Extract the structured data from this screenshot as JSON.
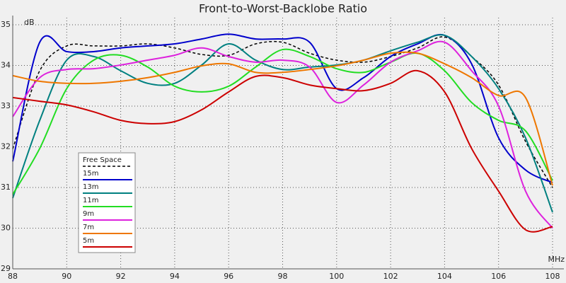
{
  "chart_data": {
    "type": "line",
    "title": "Front-to-Worst-Backlobe Ratio",
    "y_label": "dB",
    "x_label": "MHz",
    "x": [
      88,
      89,
      90,
      91,
      92,
      93,
      94,
      95,
      96,
      97,
      98,
      99,
      100,
      101,
      102,
      103,
      104,
      105,
      106,
      107,
      108
    ],
    "xlim": [
      88,
      108
    ],
    "xticks": [
      88,
      90,
      92,
      94,
      96,
      98,
      100,
      102,
      104,
      106,
      108
    ],
    "ylim": [
      29,
      35
    ],
    "yticks": [
      29,
      30,
      31,
      32,
      33,
      34,
      35
    ],
    "grid": true,
    "series": [
      {
        "name": "Free Space",
        "color": "#000000",
        "dashed": true,
        "values": [
          31.95,
          33.87,
          34.48,
          34.48,
          34.48,
          34.53,
          34.43,
          34.27,
          34.25,
          34.53,
          34.57,
          34.3,
          34.13,
          34.08,
          34.22,
          34.43,
          34.7,
          34.22,
          33.52,
          32.13,
          31.0
        ]
      },
      {
        "name": "15m",
        "color": "#0000cc",
        "values": [
          31.64,
          34.57,
          34.34,
          34.34,
          34.43,
          34.48,
          34.53,
          34.65,
          34.77,
          34.65,
          34.65,
          34.57,
          33.43,
          33.7,
          34.22,
          34.53,
          34.74,
          34.04,
          32.22,
          31.43,
          31.12
        ]
      },
      {
        "name": "13m",
        "color": "#008080",
        "values": [
          30.74,
          32.65,
          34.13,
          34.22,
          33.87,
          33.56,
          33.56,
          34.01,
          34.53,
          34.13,
          33.9,
          33.96,
          34.01,
          34.13,
          34.36,
          34.57,
          34.74,
          34.22,
          33.43,
          32.22,
          30.39
        ]
      },
      {
        "name": "11m",
        "color": "#22dd22",
        "values": [
          30.83,
          31.96,
          33.43,
          34.13,
          34.25,
          33.96,
          33.49,
          33.35,
          33.49,
          33.96,
          34.39,
          34.22,
          33.92,
          33.83,
          34.08,
          34.3,
          33.87,
          33.09,
          32.65,
          32.39,
          31.17
        ]
      },
      {
        "name": "9m",
        "color": "#dd22dd",
        "values": [
          32.74,
          33.7,
          33.9,
          33.92,
          34.01,
          34.13,
          34.25,
          34.43,
          34.22,
          34.08,
          34.13,
          33.96,
          33.09,
          33.52,
          34.08,
          34.36,
          34.57,
          33.87,
          33.0,
          30.91,
          30.0
        ]
      },
      {
        "name": "7m",
        "color": "#ee7700",
        "values": [
          33.75,
          33.61,
          33.56,
          33.56,
          33.61,
          33.7,
          33.83,
          33.99,
          34.04,
          33.83,
          33.83,
          33.9,
          33.99,
          34.13,
          34.3,
          34.3,
          34.04,
          33.7,
          33.26,
          33.21,
          31.05
        ]
      },
      {
        "name": "5m",
        "color": "#cc0000",
        "values": [
          33.21,
          33.12,
          33.03,
          32.86,
          32.65,
          32.57,
          32.62,
          32.91,
          33.35,
          33.73,
          33.7,
          33.52,
          33.43,
          33.38,
          33.56,
          33.87,
          33.35,
          31.96,
          30.91,
          29.96,
          30.04
        ]
      }
    ]
  }
}
